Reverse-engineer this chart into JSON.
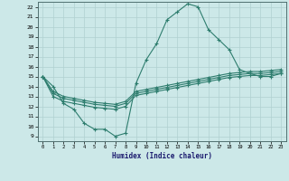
{
  "xlabel": "Humidex (Indice chaleur)",
  "bg_color": "#cce8e8",
  "grid_color": "#b0d0d0",
  "line_color": "#2e7d6e",
  "xlim": [
    -0.5,
    23.5
  ],
  "ylim": [
    8.5,
    22.5
  ],
  "xticks": [
    0,
    1,
    2,
    3,
    4,
    5,
    6,
    7,
    8,
    9,
    10,
    11,
    12,
    13,
    14,
    15,
    16,
    17,
    18,
    19,
    20,
    21,
    22,
    23
  ],
  "yticks": [
    9,
    10,
    11,
    12,
    13,
    14,
    15,
    16,
    17,
    18,
    19,
    20,
    21,
    22
  ],
  "series1_x": [
    0,
    1,
    2,
    3,
    4,
    5,
    6,
    7,
    8,
    9,
    10,
    11,
    12,
    13,
    14,
    15,
    16,
    17,
    18,
    19,
    20,
    21,
    22,
    23
  ],
  "series1_y": [
    15.0,
    14.0,
    12.3,
    11.7,
    10.3,
    9.7,
    9.7,
    9.0,
    9.3,
    14.3,
    16.7,
    18.3,
    20.7,
    21.5,
    22.3,
    22.0,
    19.7,
    18.7,
    17.7,
    15.7,
    15.3,
    15.0,
    15.0,
    15.3
  ],
  "series2_x": [
    0,
    1,
    2,
    3,
    4,
    5,
    6,
    7,
    8,
    9,
    10,
    11,
    12,
    13,
    14,
    15,
    16,
    17,
    18,
    19,
    20,
    21,
    22,
    23
  ],
  "series2_y": [
    15.0,
    13.0,
    12.5,
    12.3,
    12.1,
    11.9,
    11.8,
    11.7,
    12.0,
    13.1,
    13.3,
    13.5,
    13.7,
    13.9,
    14.1,
    14.3,
    14.5,
    14.7,
    14.9,
    15.0,
    15.1,
    15.1,
    15.2,
    15.3
  ],
  "series3_x": [
    0,
    1,
    2,
    3,
    4,
    5,
    6,
    7,
    8,
    9,
    10,
    11,
    12,
    13,
    14,
    15,
    16,
    17,
    18,
    19,
    20,
    21,
    22,
    23
  ],
  "series3_y": [
    15.0,
    13.3,
    12.8,
    12.6,
    12.4,
    12.2,
    12.1,
    12.0,
    12.3,
    13.3,
    13.5,
    13.7,
    13.9,
    14.1,
    14.3,
    14.5,
    14.7,
    14.9,
    15.1,
    15.2,
    15.3,
    15.3,
    15.4,
    15.5
  ],
  "series4_x": [
    0,
    1,
    2,
    3,
    4,
    5,
    6,
    7,
    8,
    9,
    10,
    11,
    12,
    13,
    14,
    15,
    16,
    17,
    18,
    19,
    20,
    21,
    22,
    23
  ],
  "series4_y": [
    15.0,
    13.5,
    13.0,
    12.8,
    12.6,
    12.4,
    12.3,
    12.2,
    12.5,
    13.5,
    13.7,
    13.9,
    14.1,
    14.3,
    14.5,
    14.7,
    14.9,
    15.1,
    15.3,
    15.4,
    15.5,
    15.5,
    15.6,
    15.7
  ]
}
